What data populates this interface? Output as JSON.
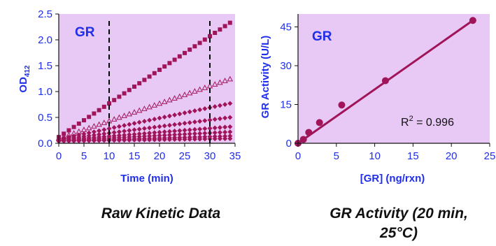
{
  "colors": {
    "plot_bg": "#e8c8f5",
    "series": "#a0155a",
    "axis_text": "#1f2ee8",
    "ink": "#111111",
    "dashed": "#000000"
  },
  "chart_data": [
    {
      "type": "scatter",
      "badge": "GR",
      "xlabel": "Time (min)",
      "ylabel": "OD",
      "ylabel_sub": "412",
      "xlim": [
        0,
        35
      ],
      "ylim": [
        0,
        2.5
      ],
      "xticks": [
        0,
        5,
        10,
        15,
        20,
        25,
        30,
        35
      ],
      "yticks": [
        0.0,
        0.5,
        1.0,
        1.5,
        2.0,
        2.5
      ],
      "ytick_labels": [
        "0.0",
        "0.5",
        "1.0",
        "1.5",
        "2.0",
        "2.5"
      ],
      "vlines": [
        10,
        30
      ],
      "grid": false,
      "x": [
        0,
        1,
        2,
        3,
        4,
        5,
        6,
        7,
        8,
        9,
        10,
        11,
        12,
        13,
        14,
        15,
        16,
        17,
        18,
        19,
        20,
        21,
        22,
        23,
        24,
        25,
        26,
        27,
        28,
        29,
        30,
        31,
        32,
        33,
        34
      ],
      "series": [
        {
          "marker": "square",
          "start": 0.12,
          "end": 2.33
        },
        {
          "marker": "triangle-open",
          "start": 0.09,
          "end": 1.24
        },
        {
          "marker": "diamond",
          "start": 0.08,
          "end": 0.77
        },
        {
          "marker": "diamond",
          "start": 0.07,
          "end": 0.5
        },
        {
          "marker": "diamond",
          "start": 0.06,
          "end": 0.32
        },
        {
          "marker": "diamond",
          "start": 0.05,
          "end": 0.22
        },
        {
          "marker": "diamond",
          "start": 0.04,
          "end": 0.14
        },
        {
          "marker": "diamond",
          "start": 0.04,
          "end": 0.09
        }
      ],
      "caption": "Raw Kinetic Data"
    },
    {
      "type": "scatter",
      "badge": "GR",
      "xlabel": "[GR] (ng/rxn)",
      "ylabel": "GR Activity (U/L)",
      "xlim": [
        0,
        25
      ],
      "ylim": [
        0,
        50
      ],
      "xticks": [
        0,
        5,
        10,
        15,
        20,
        25
      ],
      "yticks": [
        0,
        15,
        30,
        45
      ],
      "grid": false,
      "points": [
        {
          "x": 0,
          "y": 0
        },
        {
          "x": 0.7,
          "y": 1.5
        },
        {
          "x": 1.4,
          "y": 4.2
        },
        {
          "x": 2.8,
          "y": 8.0
        },
        {
          "x": 5.7,
          "y": 14.8
        },
        {
          "x": 11.4,
          "y": 24.2
        },
        {
          "x": 22.8,
          "y": 47.5
        }
      ],
      "fit_line": {
        "x": [
          0,
          22.8
        ],
        "y": [
          0,
          47.5
        ]
      },
      "r2_prefix": "R",
      "r2_sup": "2",
      "r2_value": " = 0.996",
      "caption_line1": "GR Activity (20 min,",
      "caption_line2": "25°C)"
    }
  ]
}
